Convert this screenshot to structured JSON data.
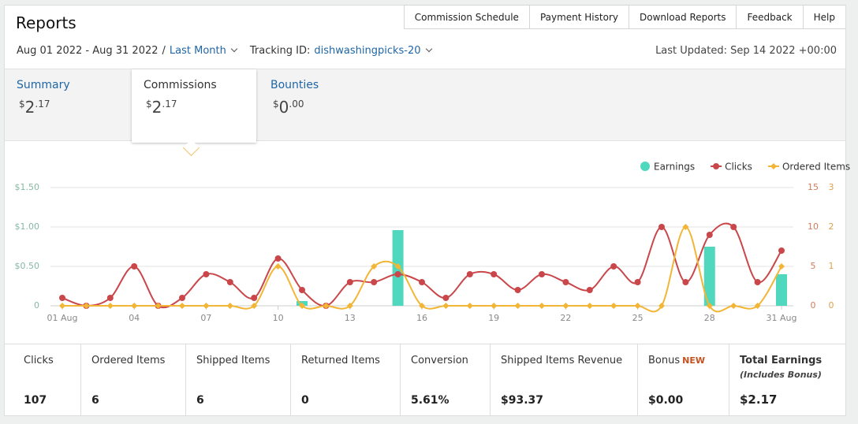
{
  "header": {
    "title": "Reports",
    "nav": [
      "Commission Schedule",
      "Payment History",
      "Download Reports",
      "Feedback",
      "Help"
    ]
  },
  "filters": {
    "date_range": "Aug 01 2022 - Aug 31 2022",
    "separator": "/",
    "period": "Last Month",
    "tracking_label": "Tracking ID:",
    "tracking_id": "dishwashingpicks-20",
    "last_updated": "Last Updated: Sep 14 2022 +00:00"
  },
  "tabs": [
    {
      "label": "Summary",
      "currency": "$",
      "whole": "2",
      "fraction": ".17"
    },
    {
      "label": "Commissions",
      "currency": "$",
      "whole": "2",
      "fraction": ".17"
    },
    {
      "label": "Bounties",
      "currency": "$",
      "whole": "0",
      "fraction": ".00"
    }
  ],
  "chart_data": {
    "type": "combo",
    "categories": [
      "01 Aug",
      null,
      null,
      "04",
      null,
      null,
      "07",
      null,
      null,
      "10",
      null,
      null,
      "13",
      null,
      null,
      "16",
      null,
      null,
      "19",
      null,
      null,
      "22",
      null,
      null,
      "25",
      null,
      null,
      "28",
      null,
      null,
      "31 Aug"
    ],
    "series": [
      {
        "name": "Earnings",
        "type": "bar",
        "axis": "y",
        "color": "#4fd8bd",
        "values": [
          0,
          0,
          0,
          0,
          0,
          0,
          0,
          0,
          0,
          0,
          0.06,
          0,
          0,
          0,
          0.96,
          0,
          0,
          0,
          0,
          0,
          0,
          0,
          0,
          0,
          0,
          0,
          0,
          0.75,
          0,
          0,
          0.4
        ]
      },
      {
        "name": "Clicks",
        "type": "line",
        "marker": "circle",
        "axis": "y2",
        "color": "#c9474a",
        "values": [
          1,
          0,
          1,
          5,
          0,
          1,
          4,
          3,
          1,
          6,
          2,
          0,
          3,
          3,
          4,
          3,
          1,
          4,
          4,
          2,
          4,
          3,
          2,
          5,
          3,
          10,
          3,
          9,
          10,
          3,
          7
        ]
      },
      {
        "name": "Ordered Items",
        "type": "line",
        "marker": "diamond",
        "axis": "y3",
        "color": "#f2b535",
        "values": [
          0,
          0,
          0,
          0,
          0,
          0,
          0,
          0,
          0,
          1,
          0,
          0,
          0,
          1,
          1,
          0,
          0,
          0,
          0,
          0,
          0,
          0,
          0,
          0,
          0,
          0,
          2,
          0,
          0,
          0,
          1
        ]
      }
    ],
    "ylim": [
      0,
      1.5
    ],
    "yticks": [
      0,
      {
        "value": 0.5,
        "label": "$0.50"
      },
      {
        "value": 1,
        "label": "$1.00"
      },
      {
        "value": 1.5,
        "label": "$1.50"
      }
    ],
    "y2lim": [
      0,
      15
    ],
    "y2ticks": [
      0,
      5,
      10,
      15
    ],
    "y3lim": [
      0,
      3
    ],
    "y3ticks": [
      0,
      1,
      2,
      3
    ],
    "grid": true,
    "legend": "top-right"
  },
  "stats": [
    {
      "label": "Clicks",
      "value": "107"
    },
    {
      "label": "Ordered Items",
      "value": "6"
    },
    {
      "label": "Shipped Items",
      "value": "6"
    },
    {
      "label": "Returned Items",
      "value": "0"
    },
    {
      "label": "Conversion",
      "value": "5.61%"
    },
    {
      "label": "Shipped Items Revenue",
      "value": "$93.37"
    },
    {
      "label": "Bonus",
      "badge": "NEW",
      "value": "$0.00"
    },
    {
      "label": "Total Earnings",
      "note": "(Includes Bonus)",
      "value": "$2.17"
    }
  ]
}
